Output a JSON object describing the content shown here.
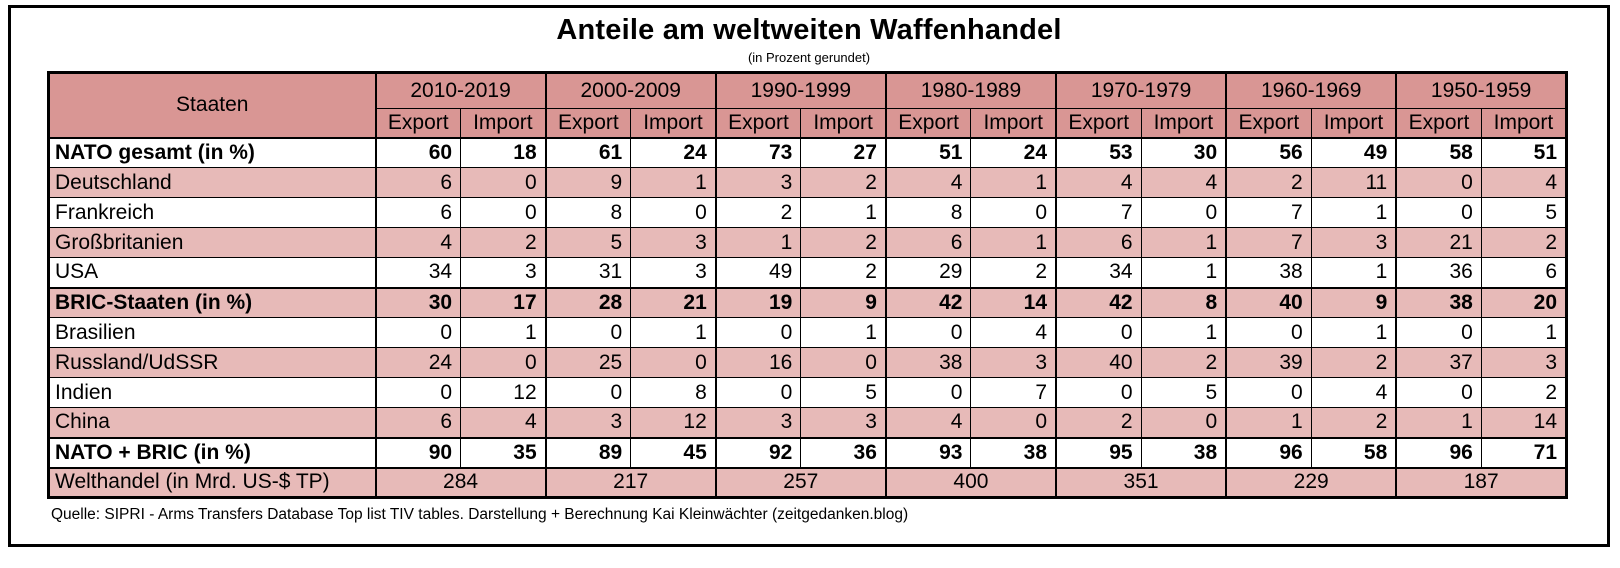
{
  "title": "Anteile am weltweiten Waffenhandel",
  "subtitle": "(in Prozent gerundet)",
  "footer": "Quelle: SIPRI - Arms Transfers Database Top list TIV tables. Darstellung + Berechnung Kai Kleinwächter (zeitgedanken.blog)",
  "colors": {
    "header_bg": "#d99694",
    "stripe_bg": "#e7bab8",
    "border": "#000000"
  },
  "table": {
    "corner_label": "Staaten",
    "decades": [
      "2010-2019",
      "2000-2009",
      "1990-1999",
      "1980-1989",
      "1970-1979",
      "1960-1969",
      "1950-1959"
    ],
    "subheaders": [
      "Export",
      "Import"
    ],
    "rows": [
      {
        "label": "NATO gesamt (in %)",
        "bold": true,
        "shaded": false,
        "values": [
          60,
          18,
          61,
          24,
          73,
          27,
          51,
          24,
          53,
          30,
          56,
          49,
          58,
          51
        ]
      },
      {
        "label": "Deutschland",
        "bold": false,
        "shaded": true,
        "values": [
          6,
          0,
          9,
          1,
          3,
          2,
          4,
          1,
          4,
          4,
          2,
          11,
          0,
          4
        ]
      },
      {
        "label": "Frankreich",
        "bold": false,
        "shaded": false,
        "values": [
          6,
          0,
          8,
          0,
          2,
          1,
          8,
          0,
          7,
          0,
          7,
          1,
          0,
          5
        ]
      },
      {
        "label": "Großbritanien",
        "bold": false,
        "shaded": true,
        "values": [
          4,
          2,
          5,
          3,
          1,
          2,
          6,
          1,
          6,
          1,
          7,
          3,
          21,
          2
        ]
      },
      {
        "label": "USA",
        "bold": false,
        "shaded": false,
        "values": [
          34,
          3,
          31,
          3,
          49,
          2,
          29,
          2,
          34,
          1,
          38,
          1,
          36,
          6
        ]
      },
      {
        "label": "BRIC-Staaten (in %)",
        "bold": true,
        "shaded": true,
        "values": [
          30,
          17,
          28,
          21,
          19,
          9,
          42,
          14,
          42,
          8,
          40,
          9,
          38,
          20
        ]
      },
      {
        "label": "Brasilien",
        "bold": false,
        "shaded": false,
        "values": [
          0,
          1,
          0,
          1,
          0,
          1,
          0,
          4,
          0,
          1,
          0,
          1,
          0,
          1
        ]
      },
      {
        "label": "Russland/UdSSR",
        "bold": false,
        "shaded": true,
        "values": [
          24,
          0,
          25,
          0,
          16,
          0,
          38,
          3,
          40,
          2,
          39,
          2,
          37,
          3
        ]
      },
      {
        "label": "Indien",
        "bold": false,
        "shaded": false,
        "values": [
          0,
          12,
          0,
          8,
          0,
          5,
          0,
          7,
          0,
          5,
          0,
          4,
          0,
          2
        ]
      },
      {
        "label": "China",
        "bold": false,
        "shaded": true,
        "values": [
          6,
          4,
          3,
          12,
          3,
          3,
          4,
          0,
          2,
          0,
          1,
          2,
          1,
          14
        ]
      },
      {
        "label": "NATO + BRIC (in %)",
        "bold": true,
        "shaded": false,
        "values": [
          90,
          35,
          89,
          45,
          92,
          36,
          93,
          38,
          95,
          38,
          96,
          58,
          96,
          71
        ]
      }
    ],
    "totals_row": {
      "label": "Welthandel (in Mrd. US-$ TP)",
      "values": [
        284,
        217,
        257,
        400,
        351,
        229,
        187
      ]
    }
  },
  "chart_data": {
    "type": "table",
    "title": "Anteile am weltweiten Waffenhandel",
    "subtitle": "(in Prozent gerundet)",
    "column_groups": [
      "2010-2019",
      "2000-2009",
      "1990-1999",
      "1980-1989",
      "1970-1979",
      "1960-1969",
      "1950-1959"
    ],
    "subcolumns": [
      "Export",
      "Import"
    ],
    "unit_rows": "Prozent (gerundet)",
    "rows": [
      {
        "staaten": "NATO gesamt (in %)",
        "values": [
          60,
          18,
          61,
          24,
          73,
          27,
          51,
          24,
          53,
          30,
          56,
          49,
          58,
          51
        ]
      },
      {
        "staaten": "Deutschland",
        "values": [
          6,
          0,
          9,
          1,
          3,
          2,
          4,
          1,
          4,
          4,
          2,
          11,
          0,
          4
        ]
      },
      {
        "staaten": "Frankreich",
        "values": [
          6,
          0,
          8,
          0,
          2,
          1,
          8,
          0,
          7,
          0,
          7,
          1,
          0,
          5
        ]
      },
      {
        "staaten": "Großbritanien",
        "values": [
          4,
          2,
          5,
          3,
          1,
          2,
          6,
          1,
          6,
          1,
          7,
          3,
          21,
          2
        ]
      },
      {
        "staaten": "USA",
        "values": [
          34,
          3,
          31,
          3,
          49,
          2,
          29,
          2,
          34,
          1,
          38,
          1,
          36,
          6
        ]
      },
      {
        "staaten": "BRIC-Staaten (in %)",
        "values": [
          30,
          17,
          28,
          21,
          19,
          9,
          42,
          14,
          42,
          8,
          40,
          9,
          38,
          20
        ]
      },
      {
        "staaten": "Brasilien",
        "values": [
          0,
          1,
          0,
          1,
          0,
          1,
          0,
          4,
          0,
          1,
          0,
          1,
          0,
          1
        ]
      },
      {
        "staaten": "Russland/UdSSR",
        "values": [
          24,
          0,
          25,
          0,
          16,
          0,
          38,
          3,
          40,
          2,
          39,
          2,
          37,
          3
        ]
      },
      {
        "staaten": "Indien",
        "values": [
          0,
          12,
          0,
          8,
          0,
          5,
          0,
          7,
          0,
          5,
          0,
          4,
          0,
          2
        ]
      },
      {
        "staaten": "China",
        "values": [
          6,
          4,
          3,
          12,
          3,
          3,
          4,
          0,
          2,
          0,
          1,
          2,
          1,
          14
        ]
      },
      {
        "staaten": "NATO + BRIC (in %)",
        "values": [
          90,
          35,
          89,
          45,
          92,
          36,
          93,
          38,
          95,
          38,
          96,
          58,
          96,
          71
        ]
      }
    ],
    "welthandel_in_mrd_usd_tp": {
      "2010-2019": 284,
      "2000-2009": 217,
      "1990-1999": 257,
      "1980-1989": 400,
      "1970-1979": 351,
      "1960-1969": 229,
      "1950-1959": 187
    },
    "source": "SIPRI - Arms Transfers Database Top list TIV tables. Darstellung + Berechnung Kai Kleinwächter (zeitgedanken.blog)"
  }
}
